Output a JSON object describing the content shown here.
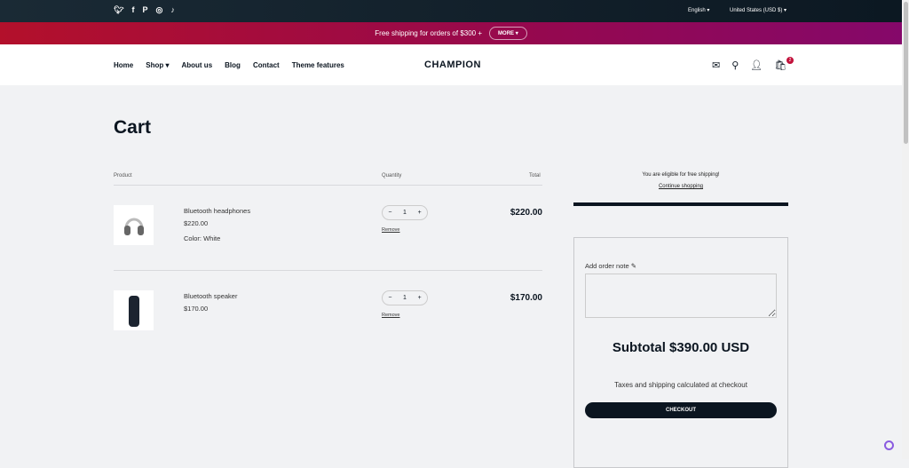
{
  "topbar": {
    "social": [
      "twitter-icon",
      "facebook-icon",
      "pinterest-icon",
      "instagram-icon",
      "tiktok-icon"
    ],
    "language": "English",
    "country": "United States (USD $)"
  },
  "promo": {
    "text": "Free shipping for orders of $300 +",
    "more": "MORE"
  },
  "nav": {
    "items": [
      "Home",
      "Shop",
      "About us",
      "Blog",
      "Contact",
      "Theme features"
    ],
    "logo": "CHAMPION",
    "cart_count": "2"
  },
  "cart": {
    "title": "Cart",
    "headers": {
      "product": "Product",
      "quantity": "Quantity",
      "total": "Total"
    },
    "items": [
      {
        "name": "Bluetooth headphones",
        "price": "$220.00",
        "variant": "Color: White",
        "quantity": "1",
        "total": "$220.00",
        "remove": "Remove"
      },
      {
        "name": "Bluetooth speaker",
        "price": "$170.00",
        "quantity": "1",
        "total": "$170.00",
        "remove": "Remove"
      }
    ]
  },
  "summary": {
    "shipping_msg": "You are eligible for free shipping!",
    "continue": "Continue shopping",
    "shipping_progress": 1.0,
    "note_label": "Add order note",
    "subtotal": "Subtotal $390.00 USD",
    "taxes": "Taxes and shipping calculated at checkout",
    "checkout": "CHECKOUT"
  },
  "colors": {
    "dark": "#0b1520",
    "promo_start": "#b3102b",
    "promo_end": "#85086a",
    "badge": "#c2103a"
  }
}
